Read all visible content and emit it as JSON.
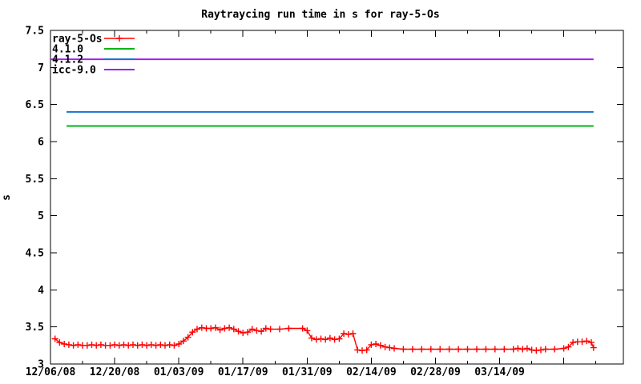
{
  "chart_data": {
    "type": "line",
    "title": "Raytraycing run time in s for ray-5-Os",
    "xlabel": "",
    "ylabel": "s",
    "ylim": [
      3,
      7.5
    ],
    "grid": false,
    "legend_position": "top-left-inside",
    "background_color": "#ffffff",
    "axis_color": "#000000",
    "x_axis_note": "x values are days since 12/06/08",
    "xlim_days": [
      0,
      125
    ],
    "xticks_major": [
      [
        0,
        "12/06/08"
      ],
      [
        14,
        "12/20/08"
      ],
      [
        28,
        "01/03/09"
      ],
      [
        42,
        "01/17/09"
      ],
      [
        56,
        "01/31/09"
      ],
      [
        70,
        "02/14/09"
      ],
      [
        84,
        "02/28/09"
      ],
      [
        98,
        "03/14/09"
      ],
      [
        112,
        ""
      ]
    ],
    "xticks_minor_days": [
      7,
      21,
      35,
      49,
      63,
      77,
      91,
      105,
      119
    ],
    "yticks": [
      [
        3,
        "3"
      ],
      [
        3.5,
        "3.5"
      ],
      [
        4,
        "4"
      ],
      [
        4.5,
        "4.5"
      ],
      [
        5,
        "5"
      ],
      [
        5.5,
        "5.5"
      ],
      [
        6,
        "6"
      ],
      [
        6.5,
        "6.5"
      ],
      [
        7,
        "7"
      ],
      [
        7.5,
        "7.5"
      ]
    ],
    "series": [
      {
        "name": "ray-5-Os",
        "color": "#ff0000",
        "style": "line-markers",
        "marker": "plus",
        "points": [
          [
            1,
            3.34
          ],
          [
            2,
            3.29
          ],
          [
            3,
            3.27
          ],
          [
            4,
            3.26
          ],
          [
            5,
            3.25
          ],
          [
            6,
            3.26
          ],
          [
            7,
            3.25
          ],
          [
            8,
            3.25
          ],
          [
            9,
            3.26
          ],
          [
            10,
            3.25
          ],
          [
            11,
            3.26
          ],
          [
            12,
            3.25
          ],
          [
            13,
            3.25
          ],
          [
            14,
            3.26
          ],
          [
            15,
            3.25
          ],
          [
            16,
            3.26
          ],
          [
            17,
            3.25
          ],
          [
            18,
            3.26
          ],
          [
            19,
            3.25
          ],
          [
            20,
            3.26
          ],
          [
            21,
            3.25
          ],
          [
            22,
            3.26
          ],
          [
            23,
            3.25
          ],
          [
            24,
            3.26
          ],
          [
            25,
            3.25
          ],
          [
            26,
            3.26
          ],
          [
            27,
            3.25
          ],
          [
            28,
            3.27
          ],
          [
            29,
            3.31
          ],
          [
            30,
            3.36
          ],
          [
            31,
            3.43
          ],
          [
            32,
            3.47
          ],
          [
            33,
            3.49
          ],
          [
            34,
            3.48
          ],
          [
            35,
            3.48
          ],
          [
            36,
            3.49
          ],
          [
            37,
            3.46
          ],
          [
            38,
            3.48
          ],
          [
            39,
            3.49
          ],
          [
            40,
            3.47
          ],
          [
            41,
            3.44
          ],
          [
            42,
            3.42
          ],
          [
            43,
            3.43
          ],
          [
            44,
            3.47
          ],
          [
            45,
            3.45
          ],
          [
            46,
            3.44
          ],
          [
            47,
            3.48
          ],
          [
            48,
            3.47
          ],
          [
            50,
            3.47
          ],
          [
            52,
            3.48
          ],
          [
            55,
            3.48
          ],
          [
            56,
            3.45
          ],
          [
            57,
            3.35
          ],
          [
            58,
            3.33
          ],
          [
            59,
            3.34
          ],
          [
            60,
            3.33
          ],
          [
            61,
            3.35
          ],
          [
            62,
            3.33
          ],
          [
            63,
            3.34
          ],
          [
            64,
            3.41
          ],
          [
            65,
            3.4
          ],
          [
            66,
            3.41
          ],
          [
            67,
            3.19
          ],
          [
            68,
            3.18
          ],
          [
            69,
            3.19
          ],
          [
            70,
            3.26
          ],
          [
            71,
            3.27
          ],
          [
            72,
            3.25
          ],
          [
            73,
            3.23
          ],
          [
            74,
            3.22
          ],
          [
            75,
            3.21
          ],
          [
            77,
            3.2
          ],
          [
            79,
            3.2
          ],
          [
            81,
            3.2
          ],
          [
            83,
            3.2
          ],
          [
            85,
            3.2
          ],
          [
            87,
            3.2
          ],
          [
            89,
            3.2
          ],
          [
            91,
            3.2
          ],
          [
            93,
            3.2
          ],
          [
            95,
            3.2
          ],
          [
            97,
            3.2
          ],
          [
            99,
            3.2
          ],
          [
            101,
            3.2
          ],
          [
            102,
            3.21
          ],
          [
            103,
            3.2
          ],
          [
            104,
            3.21
          ],
          [
            105,
            3.19
          ],
          [
            106,
            3.18
          ],
          [
            107,
            3.19
          ],
          [
            108,
            3.2
          ],
          [
            110,
            3.2
          ],
          [
            112,
            3.21
          ],
          [
            113,
            3.23
          ],
          [
            114,
            3.29
          ],
          [
            115,
            3.3
          ],
          [
            116,
            3.3
          ],
          [
            117,
            3.31
          ],
          [
            118,
            3.29
          ],
          [
            118.5,
            3.22
          ]
        ]
      },
      {
        "name": "4.1.0",
        "color": "#00b418",
        "style": "hline",
        "value": 6.21,
        "day_range": [
          3.5,
          118.5
        ]
      },
      {
        "name": "4.1.2",
        "color": "#1874d2",
        "style": "hline",
        "value": 6.4,
        "day_range": [
          3.5,
          118.5
        ]
      },
      {
        "name": "icc-9.0",
        "color": "#a020f0",
        "style": "hline",
        "value": 7.11,
        "day_range": [
          0,
          118.5
        ]
      }
    ]
  }
}
